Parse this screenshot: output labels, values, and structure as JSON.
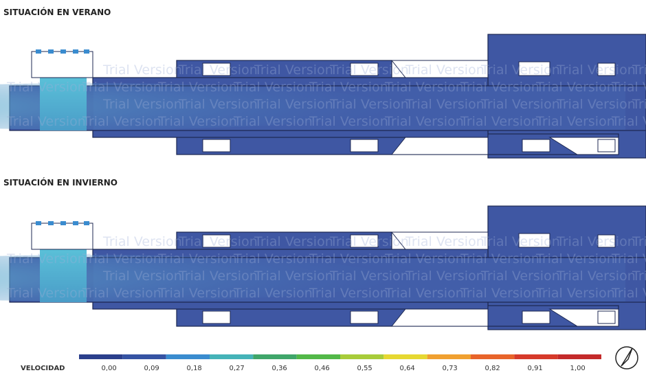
{
  "sections": [
    {
      "title": "SITUACIÓN EN VERANO"
    },
    {
      "title": "SITUACIÓN EN INVIERNO"
    }
  ],
  "watermark": "Trial Version",
  "legend": {
    "label": "VELOCIDAD",
    "colors": [
      "#2b3f8c",
      "#3553a3",
      "#3a8ccf",
      "#45b3b8",
      "#3fa66a",
      "#52b848",
      "#a8cc3a",
      "#e6d832",
      "#f0a030",
      "#e8642a",
      "#d63a2a",
      "#c42a2a"
    ],
    "ticks": [
      "0,00",
      "0,09",
      "0,18",
      "0,27",
      "0,36",
      "0,46",
      "0,55",
      "0,64",
      "0,73",
      "0,82",
      "0,91",
      "1,00"
    ]
  }
}
